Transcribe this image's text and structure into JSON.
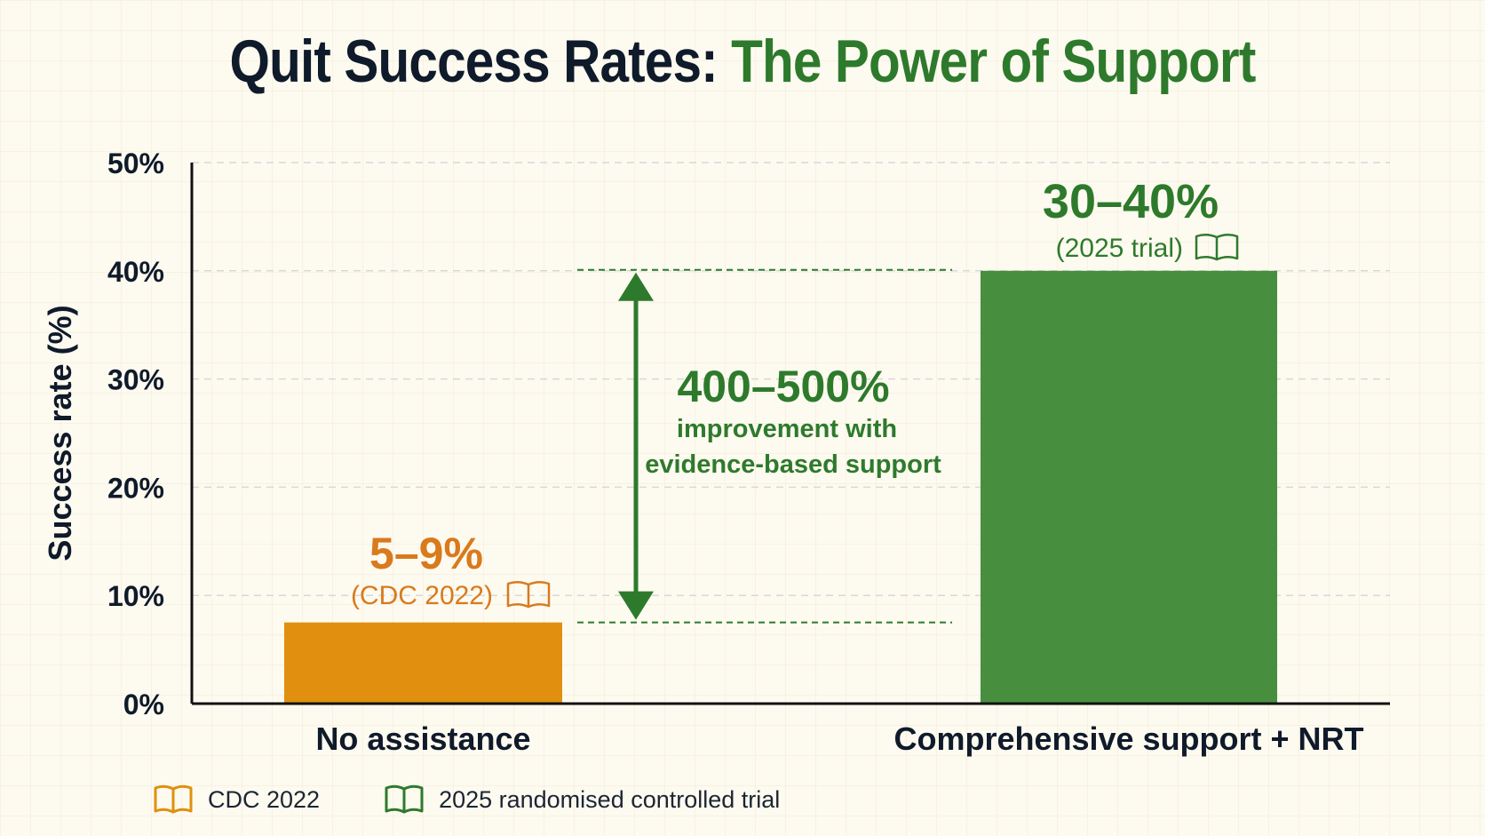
{
  "title": {
    "part1": "Quit Success Rates: ",
    "part2": "The Power of Support"
  },
  "colors": {
    "orange": "#e0900e",
    "orange_text": "#d97a1c",
    "green": "#478f3e",
    "green_text": "#2e7a2c",
    "dark": "#0f1a2a"
  },
  "chart_data": {
    "type": "bar",
    "categories": [
      "No assistance",
      "Comprehensive support + NRT"
    ],
    "values": [
      7.5,
      40
    ],
    "ylabel": "Success rate (%)",
    "xlabel": "",
    "ylim": [
      0,
      50
    ],
    "yticks": [
      "0%",
      "10%",
      "20%",
      "30%",
      "40%",
      "50%"
    ],
    "grid": true,
    "data_labels": [
      {
        "value": "5–9%",
        "source": "(CDC 2022)",
        "icon": "book-icon"
      },
      {
        "value": "30–40%",
        "source": "(2025 trial)",
        "icon": "book-icon"
      }
    ],
    "annotation": {
      "value": "400–500%",
      "line1": "improvement with",
      "line2": "evidence-based support",
      "from": 7.5,
      "to": 40
    }
  },
  "legend": [
    {
      "label": "CDC 2022",
      "icon": "book-icon",
      "color": "orange"
    },
    {
      "label": "2025 randomised controlled trial",
      "icon": "book-icon",
      "color": "green"
    }
  ]
}
